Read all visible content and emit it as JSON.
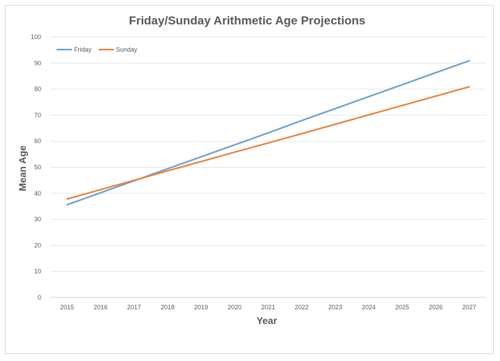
{
  "chart_data": {
    "type": "line",
    "title": "Friday/Sunday Arithmetic Age Projections",
    "xlabel": "Year",
    "ylabel": "Mean Age",
    "categories": [
      "2015",
      "2016",
      "2017",
      "2018",
      "2019",
      "2020",
      "2021",
      "2022",
      "2023",
      "2024",
      "2025",
      "2026",
      "2027"
    ],
    "ylim": [
      0,
      100
    ],
    "yticks": [
      "0",
      "10",
      "20",
      "30",
      "40",
      "50",
      "60",
      "70",
      "80",
      "90",
      "100"
    ],
    "grid": true,
    "legend_position": "top-left",
    "series": [
      {
        "name": "Friday",
        "color": "#6f9fcf",
        "values": [
          35.6,
          40.2,
          44.8,
          49.4,
          54.0,
          58.6,
          63.2,
          67.9,
          72.5,
          77.1,
          81.7,
          86.3,
          90.9
        ]
      },
      {
        "name": "Sunday",
        "color": "#e8823e",
        "values": [
          37.8,
          41.4,
          45.0,
          48.6,
          52.2,
          55.8,
          59.3,
          62.9,
          66.5,
          70.1,
          73.7,
          77.3,
          80.9
        ]
      }
    ]
  }
}
